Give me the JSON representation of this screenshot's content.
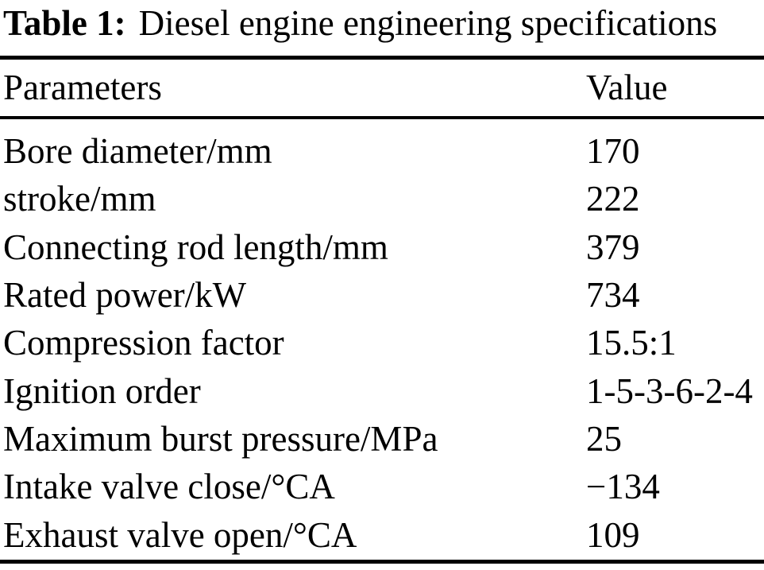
{
  "caption": {
    "label": "Table 1:",
    "text": "Diesel engine engineering specifications"
  },
  "table": {
    "columns": [
      "Parameters",
      "Value"
    ],
    "rows": [
      {
        "parameter": "Bore diameter/mm",
        "value": "170"
      },
      {
        "parameter": "stroke/mm",
        "value": "222"
      },
      {
        "parameter": "Connecting rod length/mm",
        "value": "379"
      },
      {
        "parameter": "Rated power/kW",
        "value": "734"
      },
      {
        "parameter": "Compression factor",
        "value": "15.5:1"
      },
      {
        "parameter": "Ignition order",
        "value": "1-5-3-6-2-4"
      },
      {
        "parameter": "Maximum burst pressure/MPa",
        "value": "25"
      },
      {
        "parameter": "Intake valve close/°CA",
        "value": "−134"
      },
      {
        "parameter": "Exhaust valve open/°CA",
        "value": "109"
      }
    ]
  },
  "colors": {
    "text": "#000000",
    "background": "#ffffff",
    "rule": "#000000"
  }
}
